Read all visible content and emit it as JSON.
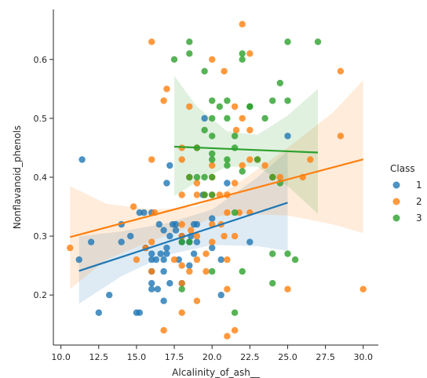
{
  "chart_data": {
    "type": "scatter",
    "title": "",
    "xlabel": "Alcalinity_of_ash__",
    "ylabel": "Nonflavanoid_phenols",
    "xlim": [
      9.5,
      31.0
    ],
    "ylim": [
      0.115,
      0.685
    ],
    "x_ticks": [
      10.0,
      12.5,
      15.0,
      17.5,
      20.0,
      22.5,
      25.0,
      27.5,
      30.0
    ],
    "x_tick_labels": [
      "10.0",
      "12.5",
      "15.0",
      "17.5",
      "20.0",
      "22.5",
      "25.0",
      "27.5",
      "30.0"
    ],
    "y_ticks": [
      0.2,
      0.3,
      0.4,
      0.5,
      0.6
    ],
    "y_tick_labels": [
      "0.2",
      "0.3",
      "0.4",
      "0.5",
      "0.6"
    ],
    "grid": false,
    "legend_title": "Class",
    "legend_position": "right",
    "series": [
      {
        "name": "1",
        "color": "#1f77b4",
        "points": [
          [
            11.2,
            0.26
          ],
          [
            11.4,
            0.43
          ],
          [
            12.0,
            0.29
          ],
          [
            12.5,
            0.17
          ],
          [
            13.2,
            0.2
          ],
          [
            14.0,
            0.32
          ],
          [
            14.0,
            0.29
          ],
          [
            14.6,
            0.3
          ],
          [
            15.0,
            0.17
          ],
          [
            15.2,
            0.17
          ],
          [
            15.2,
            0.34
          ],
          [
            15.5,
            0.34
          ],
          [
            15.6,
            0.28
          ],
          [
            16.0,
            0.22
          ],
          [
            16.0,
            0.21
          ],
          [
            16.0,
            0.26
          ],
          [
            16.0,
            0.27
          ],
          [
            16.0,
            0.34
          ],
          [
            16.0,
            0.24
          ],
          [
            16.3,
            0.26
          ],
          [
            16.4,
            0.21
          ],
          [
            16.5,
            0.32
          ],
          [
            16.6,
            0.27
          ],
          [
            16.8,
            0.19
          ],
          [
            16.8,
            0.24
          ],
          [
            16.8,
            0.26
          ],
          [
            16.8,
            0.31
          ],
          [
            17.0,
            0.27
          ],
          [
            17.0,
            0.28
          ],
          [
            17.0,
            0.39
          ],
          [
            17.2,
            0.42
          ],
          [
            17.2,
            0.3
          ],
          [
            17.2,
            0.22
          ],
          [
            17.4,
            0.32
          ],
          [
            17.6,
            0.32
          ],
          [
            17.6,
            0.31
          ],
          [
            17.8,
            0.26
          ],
          [
            18.0,
            0.29
          ],
          [
            18.0,
            0.22
          ],
          [
            18.0,
            0.3
          ],
          [
            18.5,
            0.29
          ],
          [
            18.5,
            0.25
          ],
          [
            18.6,
            0.3
          ],
          [
            18.8,
            0.27
          ],
          [
            18.8,
            0.32
          ],
          [
            19.0,
            0.32
          ],
          [
            19.0,
            0.29
          ],
          [
            19.4,
            0.37
          ],
          [
            19.5,
            0.5
          ],
          [
            20.0,
            0.33
          ],
          [
            20.0,
            0.28
          ],
          [
            20.6,
            0.2
          ],
          [
            20.6,
            0.26
          ],
          [
            21.0,
            0.39
          ],
          [
            22.5,
            0.29
          ],
          [
            25.0,
            0.47
          ]
        ],
        "regression_line": [
          [
            11.2,
            0.241
          ],
          [
            25.0,
            0.3568
          ]
        ],
        "ci_band": {
          "x": [
            11.2,
            14.0,
            17.0,
            20.0,
            23.0,
            25.0
          ],
          "lower": [
            0.185,
            0.232,
            0.268,
            0.285,
            0.283,
            0.275
          ],
          "upper": [
            0.3,
            0.308,
            0.322,
            0.345,
            0.4,
            0.445
          ]
        }
      },
      {
        "name": "2",
        "color": "#ff7f0e",
        "points": [
          [
            10.6,
            0.28
          ],
          [
            14.8,
            0.35
          ],
          [
            15.0,
            0.26
          ],
          [
            15.6,
            0.28
          ],
          [
            16.0,
            0.63
          ],
          [
            16.0,
            0.43
          ],
          [
            16.0,
            0.29
          ],
          [
            16.0,
            0.24
          ],
          [
            16.2,
            0.34
          ],
          [
            16.8,
            0.53
          ],
          [
            16.8,
            0.14
          ],
          [
            17.0,
            0.55
          ],
          [
            17.5,
            0.26
          ],
          [
            18.0,
            0.45
          ],
          [
            18.0,
            0.43
          ],
          [
            18.0,
            0.37
          ],
          [
            18.0,
            0.32
          ],
          [
            18.0,
            0.3
          ],
          [
            18.0,
            0.25
          ],
          [
            18.0,
            0.22
          ],
          [
            18.0,
            0.17
          ],
          [
            18.5,
            0.52
          ],
          [
            18.5,
            0.4
          ],
          [
            18.5,
            0.24
          ],
          [
            18.6,
            0.31
          ],
          [
            19.0,
            0.45
          ],
          [
            19.0,
            0.39
          ],
          [
            19.0,
            0.37
          ],
          [
            19.0,
            0.3
          ],
          [
            19.0,
            0.26
          ],
          [
            19.0,
            0.19
          ],
          [
            19.5,
            0.37
          ],
          [
            19.6,
            0.24
          ],
          [
            19.6,
            0.27
          ],
          [
            20.0,
            0.6
          ],
          [
            20.0,
            0.42
          ],
          [
            20.0,
            0.4
          ],
          [
            20.0,
            0.37
          ],
          [
            20.0,
            0.32
          ],
          [
            20.0,
            0.29
          ],
          [
            20.5,
            0.37
          ],
          [
            20.6,
            0.32
          ],
          [
            20.8,
            0.58
          ],
          [
            20.8,
            0.3
          ],
          [
            21.0,
            0.37
          ],
          [
            21.0,
            0.34
          ],
          [
            21.0,
            0.26
          ],
          [
            21.0,
            0.21
          ],
          [
            21.0,
            0.13
          ],
          [
            21.5,
            0.52
          ],
          [
            21.5,
            0.39
          ],
          [
            21.5,
            0.3
          ],
          [
            21.5,
            0.14
          ],
          [
            21.6,
            0.48
          ],
          [
            21.8,
            0.34
          ],
          [
            22.0,
            0.66
          ],
          [
            22.0,
            0.5
          ],
          [
            22.0,
            0.42
          ],
          [
            22.5,
            0.61
          ],
          [
            22.5,
            0.48
          ],
          [
            22.5,
            0.43
          ],
          [
            22.5,
            0.34
          ],
          [
            23.0,
            0.43
          ],
          [
            23.5,
            0.42
          ],
          [
            24.0,
            0.4
          ],
          [
            24.5,
            0.4
          ],
          [
            25.0,
            0.21
          ],
          [
            26.0,
            0.4
          ],
          [
            26.5,
            0.43
          ],
          [
            28.5,
            0.58
          ],
          [
            28.5,
            0.47
          ],
          [
            30.0,
            0.21
          ]
        ],
        "regression_line": [
          [
            10.6,
            0.2984
          ],
          [
            30.0,
            0.4304
          ]
        ],
        "ci_band": {
          "x": [
            10.6,
            13.0,
            16.0,
            19.0,
            20.2,
            22.0,
            25.0,
            28.0,
            30.0
          ],
          "lower": [
            0.21,
            0.26,
            0.292,
            0.32,
            0.333,
            0.338,
            0.335,
            0.32,
            0.305
          ],
          "upper": [
            0.385,
            0.355,
            0.345,
            0.35,
            0.365,
            0.395,
            0.45,
            0.51,
            0.565
          ]
        }
      },
      {
        "name": "3",
        "color": "#2ca02c",
        "points": [
          [
            17.5,
            0.6
          ],
          [
            18.0,
            0.29
          ],
          [
            18.0,
            0.21
          ],
          [
            18.5,
            0.63
          ],
          [
            18.5,
            0.61
          ],
          [
            18.5,
            0.4
          ],
          [
            18.5,
            0.29
          ],
          [
            19.0,
            0.45
          ],
          [
            19.0,
            0.4
          ],
          [
            19.5,
            0.58
          ],
          [
            19.5,
            0.48
          ],
          [
            19.5,
            0.4
          ],
          [
            19.5,
            0.37
          ],
          [
            20.0,
            0.53
          ],
          [
            20.0,
            0.5
          ],
          [
            20.0,
            0.47
          ],
          [
            20.0,
            0.44
          ],
          [
            20.0,
            0.43
          ],
          [
            20.0,
            0.4
          ],
          [
            20.0,
            0.37
          ],
          [
            20.0,
            0.24
          ],
          [
            20.5,
            0.52
          ],
          [
            21.0,
            0.53
          ],
          [
            21.0,
            0.5
          ],
          [
            21.0,
            0.43
          ],
          [
            21.0,
            0.42
          ],
          [
            21.5,
            0.47
          ],
          [
            21.5,
            0.45
          ],
          [
            21.5,
            0.34
          ],
          [
            21.5,
            0.17
          ],
          [
            22.0,
            0.61
          ],
          [
            22.0,
            0.6
          ],
          [
            22.0,
            0.41
          ],
          [
            22.0,
            0.24
          ],
          [
            22.5,
            0.52
          ],
          [
            22.5,
            0.52
          ],
          [
            23.0,
            0.43
          ],
          [
            23.5,
            0.5
          ],
          [
            24.0,
            0.53
          ],
          [
            24.0,
            0.4
          ],
          [
            24.0,
            0.27
          ],
          [
            24.0,
            0.22
          ],
          [
            24.5,
            0.56
          ],
          [
            24.5,
            0.39
          ],
          [
            25.0,
            0.63
          ],
          [
            25.0,
            0.53
          ],
          [
            25.0,
            0.27
          ],
          [
            25.5,
            0.26
          ],
          [
            27.0,
            0.63
          ]
        ],
        "regression_line": [
          [
            17.5,
            0.452
          ],
          [
            27.0,
            0.442
          ]
        ],
        "ci_band": {
          "x": [
            17.5,
            19.0,
            21.0,
            23.0,
            25.0,
            27.0
          ],
          "lower": [
            0.368,
            0.392,
            0.418,
            0.418,
            0.385,
            0.338
          ],
          "upper": [
            0.572,
            0.52,
            0.478,
            0.472,
            0.505,
            0.55
          ]
        }
      }
    ]
  }
}
